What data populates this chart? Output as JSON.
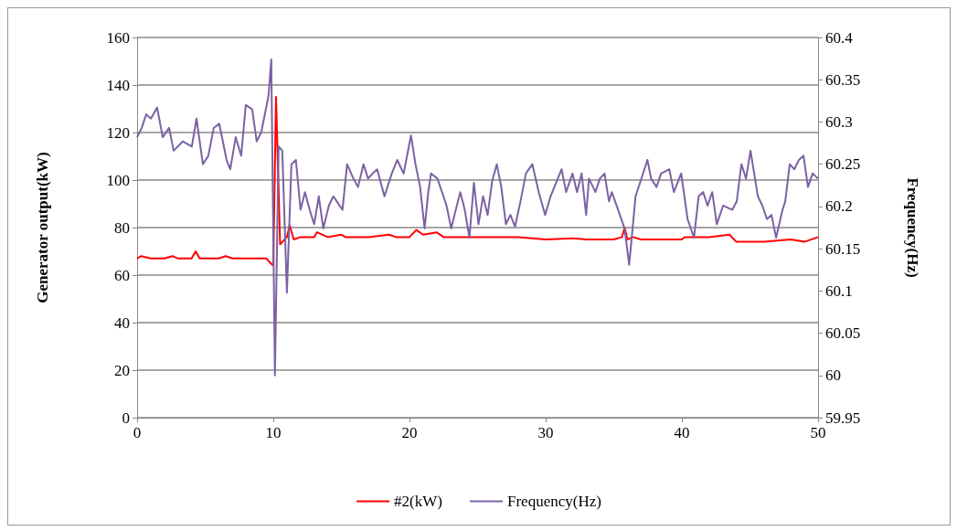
{
  "chart_data": {
    "type": "line",
    "xlabel": null,
    "ylabel": "Generator output(kW)",
    "y2label": "Frequency(Hz)",
    "xlim": [
      0,
      50
    ],
    "xticks": [
      0,
      10,
      20,
      30,
      40,
      50
    ],
    "ylim": [
      0,
      160
    ],
    "yticks": [
      0,
      20,
      40,
      60,
      80,
      100,
      120,
      140,
      160
    ],
    "y2lim": [
      59.95,
      60.4
    ],
    "y2ticks": [
      59.95,
      60,
      60.05,
      60.1,
      60.15,
      60.2,
      60.25,
      60.3,
      60.35,
      60.4
    ],
    "grid": "y",
    "legend": "bottom",
    "marker": "none",
    "line_style": "solid",
    "series": [
      {
        "name": "#2(kW)",
        "color": "#ff0000",
        "x": [
          0,
          0.3,
          1,
          2,
          2.6,
          3,
          4,
          4.3,
          4.6,
          5,
          6,
          6.5,
          7,
          8,
          9,
          9.5,
          9.8,
          10,
          10.2,
          10.5,
          11,
          11.2,
          11.5,
          12,
          13,
          13.2,
          14,
          15,
          15.3,
          17,
          18.5,
          19,
          20,
          20.5,
          21,
          22,
          22.5,
          25,
          28,
          30,
          32,
          33,
          35,
          35.6,
          35.8,
          36,
          36.4,
          37,
          40,
          40.2,
          42,
          43.5,
          44,
          46,
          48,
          49,
          50
        ],
        "values": [
          67,
          68,
          67,
          67,
          68,
          67,
          67,
          70,
          67,
          67,
          67,
          68,
          67,
          67,
          67,
          67,
          65,
          64,
          135,
          73,
          76,
          81,
          75,
          76,
          76,
          78,
          76,
          77,
          76,
          76,
          77,
          76,
          76,
          79,
          77,
          78,
          76,
          76,
          76,
          75,
          75.5,
          75,
          75,
          76,
          80,
          75,
          76,
          75,
          75,
          76,
          76,
          77,
          74,
          74,
          75,
          74,
          76
        ]
      },
      {
        "name": "Frequency(Hz)",
        "color": "#7b62a3",
        "axis": "y2",
        "x": [
          0,
          0.34,
          0.67,
          1.01,
          1.47,
          1.88,
          2.35,
          2.68,
          3.35,
          4.02,
          4.36,
          4.83,
          5.23,
          5.63,
          6.03,
          6.57,
          6.84,
          7.24,
          7.64,
          7.98,
          8.45,
          8.78,
          9.12,
          9.65,
          9.85,
          10.12,
          10.39,
          10.66,
          11.0,
          11.33,
          11.66,
          12.0,
          12.33,
          12.67,
          13.0,
          13.34,
          13.67,
          14.08,
          14.41,
          15.08,
          15.42,
          15.88,
          16.22,
          16.62,
          16.96,
          17.29,
          17.63,
          18.16,
          18.7,
          19.1,
          19.57,
          20.11,
          20.44,
          20.78,
          21.11,
          21.38,
          21.58,
          22.05,
          22.39,
          22.72,
          23.06,
          23.4,
          23.73,
          24.06,
          24.4,
          24.73,
          25.07,
          25.4,
          25.74,
          26.07,
          26.41,
          26.74,
          27.08,
          27.41,
          27.75,
          28.15,
          28.55,
          29.02,
          29.49,
          29.96,
          30.36,
          30.76,
          31.17,
          31.5,
          31.97,
          32.3,
          32.64,
          32.97,
          33.18,
          33.65,
          33.98,
          34.32,
          34.65,
          34.85,
          35.32,
          35.79,
          36.13,
          36.6,
          36.93,
          37.47,
          37.74,
          38.14,
          38.47,
          39.08,
          39.41,
          39.95,
          40.42,
          40.89,
          41.23,
          41.56,
          41.89,
          42.23,
          42.56,
          43.03,
          43.7,
          44.03,
          44.37,
          44.71,
          45.04,
          45.58,
          45.91,
          46.25,
          46.58,
          46.92,
          47.39,
          47.59,
          47.92,
          48.26,
          48.59,
          48.93,
          49.26,
          49.6,
          50
        ],
        "values": [
          60.282,
          60.293,
          60.309,
          60.304,
          60.317,
          60.282,
          60.293,
          60.266,
          60.277,
          60.271,
          60.304,
          60.25,
          60.26,
          60.293,
          60.298,
          60.255,
          60.244,
          60.282,
          60.26,
          60.32,
          60.315,
          60.277,
          60.288,
          60.331,
          60.374,
          60.0,
          60.271,
          60.266,
          60.098,
          60.25,
          60.255,
          60.196,
          60.217,
          60.196,
          60.179,
          60.212,
          60.174,
          60.201,
          60.212,
          60.196,
          60.25,
          60.233,
          60.223,
          60.25,
          60.233,
          60.239,
          60.244,
          60.212,
          60.239,
          60.255,
          60.239,
          60.284,
          60.25,
          60.223,
          60.174,
          60.217,
          60.239,
          60.233,
          60.217,
          60.201,
          60.174,
          60.196,
          60.217,
          60.196,
          60.163,
          60.228,
          60.179,
          60.212,
          60.19,
          60.23,
          60.25,
          60.223,
          60.179,
          60.19,
          60.176,
          60.206,
          60.239,
          60.25,
          60.217,
          60.19,
          60.212,
          60.228,
          60.244,
          60.217,
          60.239,
          60.217,
          60.239,
          60.19,
          60.233,
          60.217,
          60.233,
          60.239,
          60.206,
          60.217,
          60.196,
          60.174,
          60.131,
          60.212,
          60.228,
          60.255,
          60.233,
          60.223,
          60.239,
          60.244,
          60.217,
          60.239,
          60.185,
          60.163,
          60.212,
          60.217,
          60.201,
          60.217,
          60.179,
          60.201,
          60.196,
          60.206,
          60.25,
          60.233,
          60.266,
          60.212,
          60.201,
          60.185,
          60.19,
          60.163,
          60.196,
          60.206,
          60.25,
          60.244,
          60.255,
          60.26,
          60.223,
          60.239,
          60.233
        ]
      }
    ]
  }
}
